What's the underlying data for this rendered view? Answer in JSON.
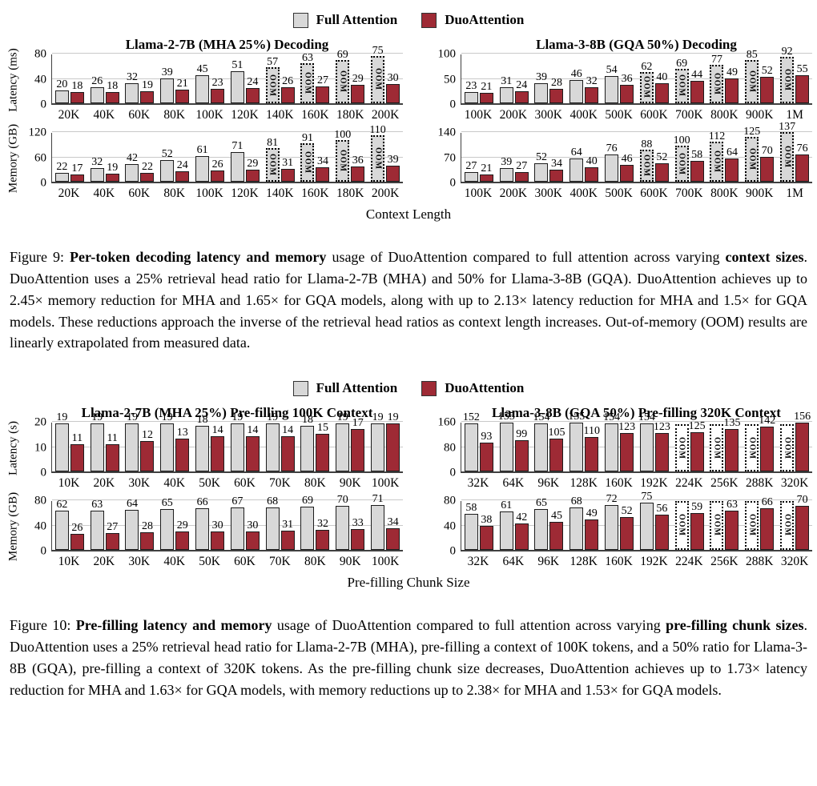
{
  "colors": {
    "full_attention": "#d8d8d8",
    "duo_attention": "#9e2a35",
    "axis": "#404040",
    "gridline": "#c9c9c9"
  },
  "strings": {
    "oom_label": "OOM"
  },
  "figure9": {
    "legend": [
      {
        "label": "Full Attention"
      },
      {
        "label": "DuoAttention"
      }
    ],
    "xaxis_label": "Context Length",
    "caption_segments": [
      {
        "text": "Figure 9: ",
        "bold": false
      },
      {
        "text": "Per-token decoding latency and memory",
        "bold": true
      },
      {
        "text": " usage of DuoAttention compared to full attention across varying ",
        "bold": false
      },
      {
        "text": "context sizes",
        "bold": true
      },
      {
        "text": ".  DuoAttention uses a 25% retrieval head ratio for Llama-2-7B (MHA) and 50% for Llama-3-8B (GQA). DuoAttention achieves up to 2.45× memory reduction for MHA and 1.65× for GQA models, along with up to 2.13× latency reduction for MHA and 1.5× for GQA models.  These reductions approach the inverse of the retrieval head ratios as context length increases. Out-of-memory (OOM) results are linearly extrapolated from measured data.",
        "bold": false
      }
    ]
  },
  "figure10": {
    "legend": [
      {
        "label": "Full Attention"
      },
      {
        "label": "DuoAttention"
      }
    ],
    "xaxis_label": "Pre-filling Chunk Size",
    "caption_segments": [
      {
        "text": "Figure 10: ",
        "bold": false
      },
      {
        "text": "Pre-filling latency and memory",
        "bold": true
      },
      {
        "text": " usage of DuoAttention compared to full attention across varying ",
        "bold": false
      },
      {
        "text": "pre-filling chunk sizes",
        "bold": true
      },
      {
        "text": ". DuoAttention uses a 25% retrieval head ratio for Llama-2-7B (MHA), pre-filling a context of 100K tokens, and a 50% ratio for Llama-3-8B (GQA), pre-filling a context of 320K tokens. As the pre-filling chunk size decreases, DuoAttention achieves up to 1.73× latency reduction for MHA and 1.63× for GQA models, with memory reductions up to 2.38× for MHA and 1.53× for GQA models.",
        "bold": false
      }
    ]
  },
  "chart_data": [
    {
      "id": "fig9-mha-decoding-latency",
      "type": "bar",
      "title": "Llama-2-7B (MHA 25%) Decoding",
      "ylabel": "Latency (ms)",
      "yticks": [
        0,
        40,
        80
      ],
      "ymax": 80,
      "categories": [
        "20K",
        "40K",
        "60K",
        "80K",
        "100K",
        "120K",
        "140K",
        "160K",
        "180K",
        "200K"
      ],
      "oom_style": "filled",
      "series": [
        {
          "name": "Full Attention",
          "values": [
            20,
            26,
            32,
            39,
            45,
            51,
            57,
            63,
            69,
            75
          ],
          "oom_from_index": 6
        },
        {
          "name": "DuoAttention",
          "values": [
            18,
            18,
            19,
            21,
            23,
            24,
            26,
            27,
            29,
            30
          ]
        }
      ]
    },
    {
      "id": "fig9-gqa-decoding-latency",
      "type": "bar",
      "title": "Llama-3-8B (GQA 50%) Decoding",
      "ylabel": null,
      "yticks": [
        0,
        50,
        100
      ],
      "ymax": 100,
      "categories": [
        "100K",
        "200K",
        "300K",
        "400K",
        "500K",
        "600K",
        "700K",
        "800K",
        "900K",
        "1M"
      ],
      "oom_style": "filled",
      "series": [
        {
          "name": "Full Attention",
          "values": [
            23,
            31,
            39,
            46,
            54,
            62,
            69,
            77,
            85,
            92
          ],
          "oom_from_index": 5
        },
        {
          "name": "DuoAttention",
          "values": [
            21,
            24,
            28,
            32,
            36,
            40,
            44,
            49,
            52,
            55
          ]
        }
      ]
    },
    {
      "id": "fig9-mha-decoding-memory",
      "type": "bar",
      "title": null,
      "ylabel": "Memory (GB)",
      "yticks": [
        0,
        60,
        120
      ],
      "ymax": 120,
      "categories": [
        "20K",
        "40K",
        "60K",
        "80K",
        "100K",
        "120K",
        "140K",
        "160K",
        "180K",
        "200K"
      ],
      "oom_style": "filled",
      "series": [
        {
          "name": "Full Attention",
          "values": [
            22,
            32,
            42,
            52,
            61,
            71,
            81,
            91,
            100,
            110
          ],
          "oom_from_index": 6
        },
        {
          "name": "DuoAttention",
          "values": [
            17,
            19,
            22,
            24,
            26,
            29,
            31,
            34,
            36,
            39
          ]
        }
      ]
    },
    {
      "id": "fig9-gqa-decoding-memory",
      "type": "bar",
      "title": null,
      "ylabel": null,
      "yticks": [
        0,
        70,
        140
      ],
      "ymax": 140,
      "categories": [
        "100K",
        "200K",
        "300K",
        "400K",
        "500K",
        "600K",
        "700K",
        "800K",
        "900K",
        "1M"
      ],
      "oom_style": "filled",
      "series": [
        {
          "name": "Full Attention",
          "values": [
            27,
            39,
            52,
            64,
            76,
            88,
            100,
            112,
            125,
            137
          ],
          "oom_from_index": 5
        },
        {
          "name": "DuoAttention",
          "values": [
            21,
            27,
            34,
            40,
            46,
            52,
            58,
            64,
            70,
            76
          ]
        }
      ]
    },
    {
      "id": "fig10-mha-prefilling-latency",
      "type": "bar",
      "title": "Llama-2-7B (MHA 25%) Pre-filling 100K Context",
      "ylabel": "Latency (s)",
      "yticks": [
        0,
        10,
        20
      ],
      "ymax": 20,
      "categories": [
        "10K",
        "20K",
        "30K",
        "40K",
        "50K",
        "60K",
        "70K",
        "80K",
        "90K",
        "100K"
      ],
      "oom_style": "filled",
      "series": [
        {
          "name": "Full Attention",
          "values": [
            19,
            19,
            19,
            19,
            18,
            19,
            19,
            18,
            19,
            19
          ]
        },
        {
          "name": "DuoAttention",
          "values": [
            11,
            11,
            12,
            13,
            14,
            14,
            14,
            15,
            17,
            19
          ]
        }
      ]
    },
    {
      "id": "fig10-gqa-prefilling-latency",
      "type": "bar",
      "title": "Llama-3-8B (GQA 50%) Pre-filling 320K Context",
      "ylabel": null,
      "yticks": [
        0,
        80,
        160
      ],
      "ymax": 160,
      "categories": [
        "32K",
        "64K",
        "96K",
        "128K",
        "160K",
        "192K",
        "224K",
        "256K",
        "288K",
        "320K"
      ],
      "oom_style": "hollow",
      "series": [
        {
          "name": "Full Attention",
          "values": [
            152,
            155,
            154,
            155,
            154,
            154,
            null,
            null,
            null,
            null
          ],
          "oom_from_index": 6,
          "oom_bar_value": 150
        },
        {
          "name": "DuoAttention",
          "values": [
            93,
            99,
            105,
            110,
            123,
            123,
            125,
            135,
            142,
            156
          ]
        }
      ]
    },
    {
      "id": "fig10-mha-prefilling-memory",
      "type": "bar",
      "title": null,
      "ylabel": "Memory (GB)",
      "yticks": [
        0,
        40,
        80
      ],
      "ymax": 80,
      "categories": [
        "10K",
        "20K",
        "30K",
        "40K",
        "50K",
        "60K",
        "70K",
        "80K",
        "90K",
        "100K"
      ],
      "oom_style": "filled",
      "series": [
        {
          "name": "Full Attention",
          "values": [
            62,
            63,
            64,
            65,
            66,
            67,
            68,
            69,
            70,
            71
          ]
        },
        {
          "name": "DuoAttention",
          "values": [
            26,
            27,
            28,
            29,
            30,
            30,
            31,
            32,
            33,
            34
          ]
        }
      ]
    },
    {
      "id": "fig10-gqa-prefilling-memory",
      "type": "bar",
      "title": null,
      "ylabel": null,
      "yticks": [
        0,
        40,
        80
      ],
      "ymax": 80,
      "categories": [
        "32K",
        "64K",
        "96K",
        "128K",
        "160K",
        "192K",
        "224K",
        "256K",
        "288K",
        "320K"
      ],
      "oom_style": "hollow",
      "series": [
        {
          "name": "Full Attention",
          "values": [
            58,
            61,
            65,
            68,
            72,
            75,
            null,
            null,
            null,
            null
          ],
          "oom_from_index": 6,
          "oom_bar_value": 78
        },
        {
          "name": "DuoAttention",
          "values": [
            38,
            42,
            45,
            49,
            52,
            56,
            59,
            63,
            66,
            70
          ]
        }
      ]
    }
  ]
}
